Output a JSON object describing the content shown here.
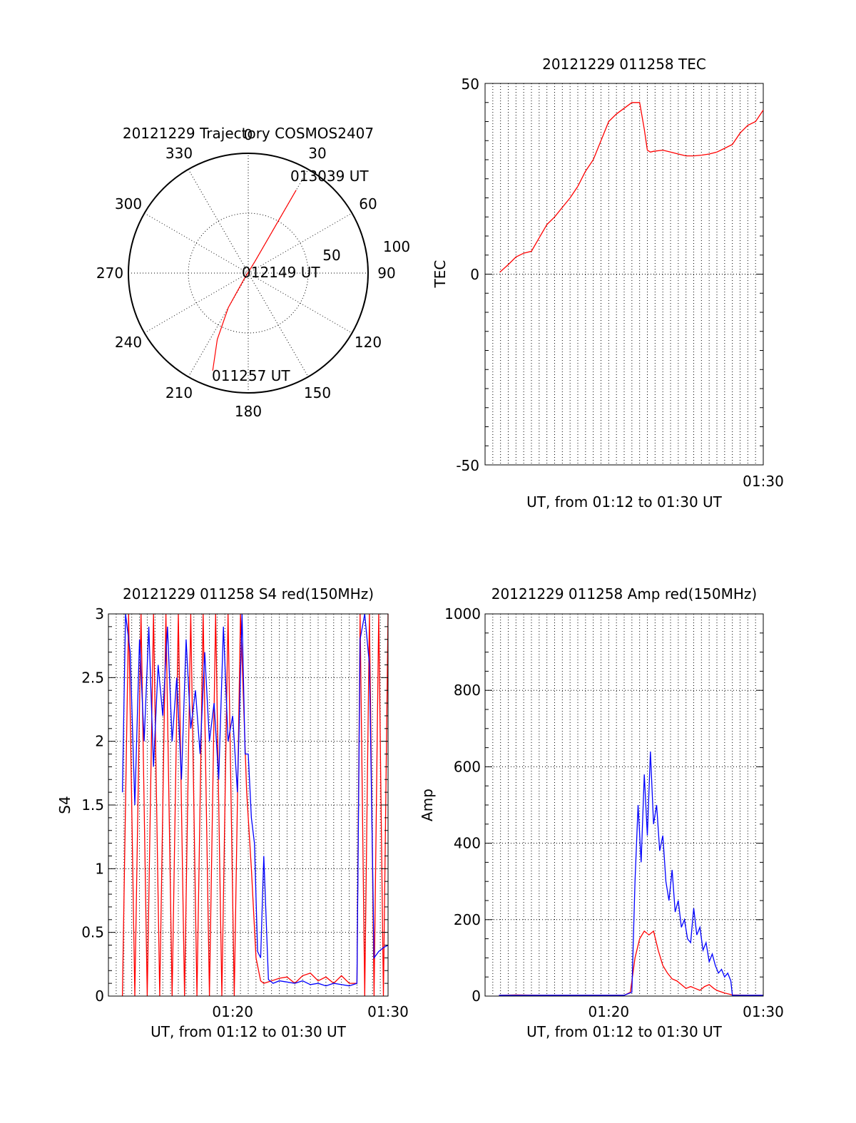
{
  "chart_data": [
    {
      "type": "polar",
      "title": "20121229 Trajectory COSMOS2407",
      "angle_labels": [
        "0",
        "30",
        "60",
        "90",
        "120",
        "150",
        "180",
        "210",
        "240",
        "270",
        "300",
        "330"
      ],
      "radial_labels": [
        "50",
        "100"
      ],
      "track_color": "#ff0000",
      "track_start_label": "011257 UT",
      "track_mid_label": "012149 UT",
      "track_end_label": "013039 UT",
      "track": [
        {
          "az": 200,
          "el": 12
        },
        {
          "az": 205,
          "el": 35
        },
        {
          "az": 210,
          "el": 60
        },
        {
          "az": 215,
          "el": 85
        },
        {
          "az": 30,
          "el": 80
        },
        {
          "az": 30,
          "el": 50
        },
        {
          "az": 30,
          "el": 18
        }
      ]
    },
    {
      "type": "line",
      "title": "20121229 011258 TEC",
      "xlabel": "UT, from 01:12 to 01:30 UT",
      "ylabel": "TEC",
      "xlim": [
        72,
        90
      ],
      "ylim": [
        -50,
        50
      ],
      "yticks": [
        "-50",
        "0",
        "50"
      ],
      "xticklabel": "01:30",
      "grid": "vertical",
      "series": [
        {
          "color": "#ff0000",
          "x": [
            72.95,
            73.5,
            74.0,
            74.5,
            75.0,
            75.5,
            76.0,
            76.5,
            77.0,
            77.5,
            78.0,
            78.5,
            79.0,
            79.5,
            80.0,
            80.5,
            81.0,
            81.5,
            82.0,
            82.3,
            82.5,
            82.7,
            82.9,
            83.5,
            84.0,
            84.5,
            85.0,
            85.5,
            86.0,
            86.5,
            87.0,
            87.5,
            88.0,
            88.5,
            89.0,
            89.5,
            90.0
          ],
          "values": [
            0.5,
            2.5,
            4.5,
            5.5,
            6.0,
            9.5,
            13.0,
            15.0,
            17.5,
            20.0,
            23.0,
            27.0,
            30.0,
            35.0,
            40.0,
            42.0,
            43.5,
            45.0,
            45.0,
            38.0,
            32.5,
            32.0,
            32.2,
            32.5,
            32.0,
            31.5,
            31.0,
            31.0,
            31.2,
            31.5,
            32.0,
            33.0,
            34.0,
            37.0,
            39.0,
            40.0,
            43.0
          ]
        }
      ]
    },
    {
      "type": "line",
      "title": "20121229 011258 S4 red(150MHz)",
      "xlabel": "UT, from 01:12 to 01:30 UT",
      "ylabel": "S4",
      "xlim": [
        72,
        90
      ],
      "ylim": [
        0,
        3
      ],
      "yticks": [
        "0",
        "0.5",
        "1",
        "1.5",
        "2",
        "2.5",
        "3"
      ],
      "xtick_values": [
        80,
        90
      ],
      "xticklabels": [
        "01:20",
        "01:30"
      ],
      "grid": "both",
      "series": [
        {
          "color": "#ff0000",
          "x": [
            72.9,
            73.3,
            73.7,
            74.1,
            74.5,
            74.9,
            75.3,
            75.7,
            76.1,
            76.5,
            76.9,
            77.3,
            77.7,
            78.1,
            78.5,
            78.9,
            79.3,
            79.7,
            80.1,
            80.5,
            80.9,
            81.2,
            81.5,
            81.8,
            82.0,
            82.5,
            83.0,
            83.5,
            84.0,
            84.5,
            85.0,
            85.5,
            86.0,
            86.5,
            87.0,
            87.5,
            88.0,
            88.2,
            88.5,
            88.8,
            89.1,
            89.4,
            89.7,
            90.0
          ],
          "values": [
            0,
            3,
            0,
            3,
            0,
            3,
            0,
            3,
            0,
            3,
            0,
            3,
            0,
            3,
            0,
            3,
            0,
            3,
            0,
            3,
            1.6,
            1.0,
            0.3,
            0.12,
            0.1,
            0.12,
            0.14,
            0.15,
            0.1,
            0.16,
            0.18,
            0.12,
            0.15,
            0.1,
            0.16,
            0.1,
            0.1,
            3,
            0,
            3,
            0,
            3,
            0,
            3
          ]
        },
        {
          "color": "#0000ff",
          "x": [
            72.9,
            73.1,
            73.4,
            73.7,
            74.0,
            74.3,
            74.6,
            74.9,
            75.2,
            75.5,
            75.8,
            76.1,
            76.4,
            76.7,
            77.0,
            77.3,
            77.6,
            77.9,
            78.2,
            78.5,
            78.8,
            79.1,
            79.4,
            79.7,
            80.0,
            80.3,
            80.6,
            80.8,
            81.0,
            81.2,
            81.4,
            81.6,
            81.8,
            82.0,
            82.3,
            82.6,
            83.0,
            83.5,
            84.0,
            84.5,
            85.0,
            85.5,
            86.0,
            86.5,
            87.0,
            87.5,
            88.0,
            88.2,
            88.5,
            88.8,
            89.1,
            89.4,
            89.7,
            90.0
          ],
          "values": [
            1.6,
            3.0,
            2.7,
            1.5,
            2.8,
            2.0,
            2.9,
            1.8,
            2.6,
            2.2,
            2.9,
            2.0,
            2.5,
            1.7,
            2.8,
            2.1,
            2.4,
            1.9,
            2.7,
            2.0,
            2.3,
            1.7,
            2.9,
            2.0,
            2.2,
            1.6,
            3.0,
            1.9,
            1.9,
            1.4,
            1.2,
            0.35,
            0.3,
            1.1,
            0.13,
            0.1,
            0.12,
            0.11,
            0.1,
            0.12,
            0.09,
            0.1,
            0.08,
            0.1,
            0.09,
            0.08,
            0.1,
            2.8,
            3.0,
            2.6,
            0.3,
            0.35,
            0.38,
            0.4
          ]
        }
      ]
    },
    {
      "type": "line",
      "title": "20121229 011258 Amp red(150MHz)",
      "xlabel": "UT, from 01:12 to 01:30 UT",
      "ylabel": "Amp",
      "xlim": [
        72,
        90
      ],
      "ylim": [
        0,
        1000
      ],
      "yticks": [
        "0",
        "200",
        "400",
        "600",
        "800",
        "1000"
      ],
      "xtick_values": [
        80,
        90
      ],
      "xticklabels": [
        "01:20",
        "01:30"
      ],
      "grid": "both",
      "series": [
        {
          "color": "#ff0000",
          "x": [
            72.9,
            74.0,
            76.0,
            78.0,
            80.0,
            81.0,
            81.4,
            81.7,
            82.0,
            82.3,
            82.6,
            82.9,
            83.2,
            83.5,
            83.8,
            84.1,
            84.4,
            84.7,
            85.0,
            85.3,
            85.6,
            85.9,
            86.2,
            86.5,
            86.8,
            87.0,
            87.5,
            88.0,
            89.0,
            90.0
          ],
          "values": [
            2,
            3,
            2,
            2,
            2,
            2,
            10,
            100,
            150,
            170,
            160,
            170,
            120,
            80,
            60,
            45,
            40,
            30,
            20,
            25,
            20,
            15,
            25,
            30,
            20,
            15,
            8,
            3,
            2,
            2
          ]
        },
        {
          "color": "#0000ff",
          "x": [
            72.9,
            74.0,
            76.0,
            78.0,
            80.0,
            81.0,
            81.5,
            81.7,
            81.9,
            82.1,
            82.3,
            82.5,
            82.7,
            82.9,
            83.1,
            83.3,
            83.5,
            83.7,
            83.9,
            84.1,
            84.3,
            84.5,
            84.7,
            84.9,
            85.1,
            85.3,
            85.5,
            85.7,
            85.9,
            86.1,
            86.3,
            86.5,
            86.7,
            86.9,
            87.1,
            87.3,
            87.5,
            87.7,
            87.9,
            88.0,
            88.5,
            89.0,
            90.0
          ],
          "values": [
            2,
            2,
            2,
            2,
            2,
            2,
            10,
            300,
            500,
            350,
            580,
            420,
            640,
            450,
            500,
            380,
            420,
            300,
            250,
            330,
            220,
            250,
            180,
            200,
            150,
            140,
            230,
            160,
            180,
            120,
            140,
            90,
            110,
            80,
            60,
            70,
            50,
            60,
            40,
            2,
            2,
            2,
            2
          ]
        }
      ]
    }
  ]
}
